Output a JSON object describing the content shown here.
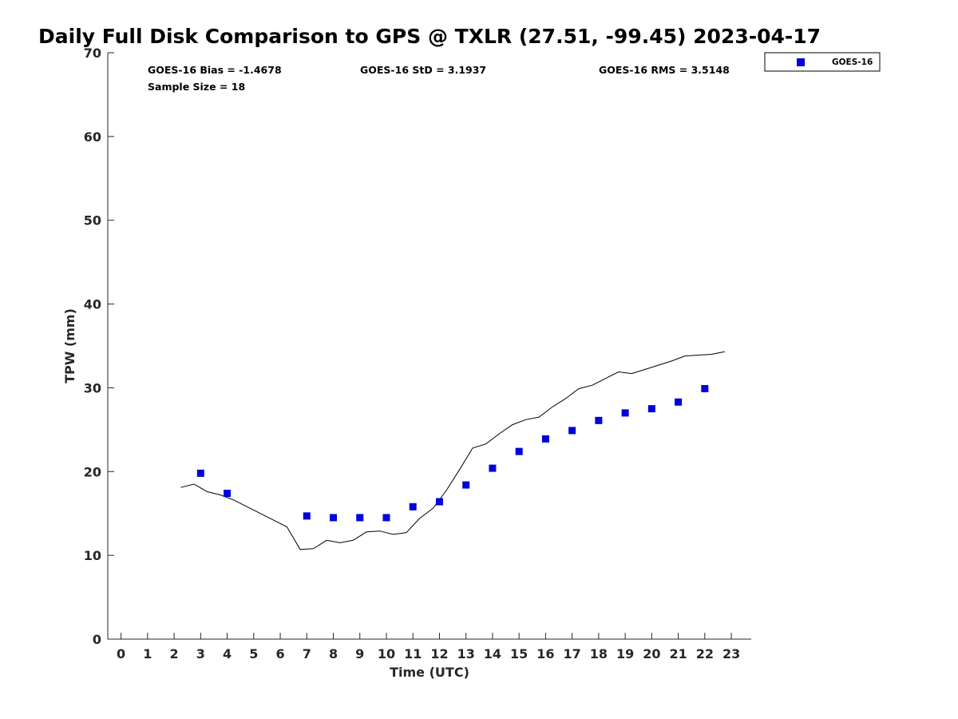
{
  "chart_data": {
    "type": "scatter",
    "title": "Daily Full Disk Comparison to GPS @ TXLR (27.51, -99.45) 2023-04-17",
    "xlabel": "Time (UTC)",
    "ylabel": "TPW (mm)",
    "xlim": [
      -0.5,
      23.75
    ],
    "ylim": [
      0,
      70
    ],
    "x_ticks": [
      0,
      1,
      2,
      3,
      4,
      5,
      6,
      7,
      8,
      9,
      10,
      11,
      12,
      13,
      14,
      15,
      16,
      17,
      18,
      19,
      20,
      21,
      22,
      23
    ],
    "x_tick_labels": [
      "0",
      "1",
      "2",
      "3",
      "4",
      "5",
      "6",
      "7",
      "8",
      "9",
      "10",
      "11",
      "12",
      "13",
      "14",
      "15",
      "16",
      "17",
      "18",
      "19",
      "20",
      "21",
      "22",
      "23"
    ],
    "y_ticks": [
      0,
      10,
      20,
      30,
      40,
      50,
      60,
      70
    ],
    "y_tick_labels": [
      "0",
      "10",
      "20",
      "30",
      "40",
      "50",
      "60",
      "70"
    ],
    "grid": false,
    "legend_position": "top-right, outside plot",
    "stats": {
      "bias": "GOES-16 Bias = -1.4678",
      "std": "GOES-16 StD = 3.1937",
      "rms": "GOES-16 RMS = 3.5148",
      "sample_size": "Sample Size = 18"
    },
    "series": [
      {
        "name": "GOES-16",
        "kind": "markers",
        "marker": "square",
        "color": "#0000dd",
        "x": [
          3,
          4,
          7,
          8,
          9,
          10,
          11,
          12,
          13,
          14,
          15,
          16,
          17,
          18,
          19,
          20,
          21,
          22
        ],
        "y": [
          19.8,
          17.4,
          14.7,
          14.5,
          14.5,
          14.5,
          15.8,
          16.4,
          18.4,
          20.4,
          22.4,
          23.9,
          24.9,
          26.1,
          27.0,
          27.5,
          28.3,
          29.9
        ]
      },
      {
        "kind": "line",
        "color": "#000000",
        "x": [
          2.25,
          2.75,
          3.25,
          3.75,
          4.25,
          4.75,
          5.25,
          5.75,
          6.25,
          6.75,
          7.25,
          7.75,
          8.25,
          8.75,
          9.25,
          9.75,
          10.25,
          10.75,
          11.25,
          11.75,
          12.25,
          12.75,
          13.25,
          13.75,
          14.25,
          14.75,
          15.25,
          15.75,
          16.25,
          16.75,
          17.25,
          17.75,
          18.25,
          18.75,
          19.25,
          19.75,
          20.25,
          20.75,
          21.25,
          21.75,
          22.25,
          22.75
        ],
        "y": [
          18.1,
          18.5,
          17.6,
          17.2,
          16.6,
          15.8,
          15.0,
          14.2,
          13.4,
          10.7,
          10.8,
          11.8,
          11.5,
          11.8,
          12.8,
          12.9,
          12.5,
          12.7,
          14.4,
          15.6,
          17.7,
          20.2,
          22.8,
          23.3,
          24.5,
          25.6,
          26.2,
          26.5,
          27.7,
          28.7,
          29.9,
          30.3,
          31.1,
          31.9,
          31.7,
          32.2,
          32.7,
          33.2,
          33.8,
          33.9,
          34.0,
          34.3
        ]
      }
    ]
  }
}
